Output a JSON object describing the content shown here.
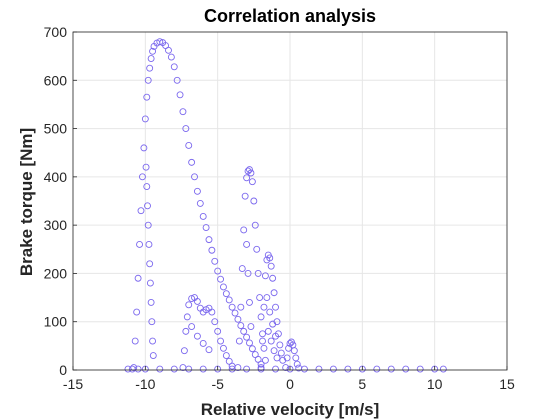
{
  "chart_data": {
    "type": "scatter",
    "title": "Correlation analysis",
    "xlabel": "Relative velocity [m/s]",
    "ylabel": "Brake torque [Nm]",
    "xlim": [
      -15,
      15
    ],
    "ylim": [
      0,
      700
    ],
    "xticks": [
      -15,
      -10,
      -5,
      0,
      5,
      10,
      15
    ],
    "yticks": [
      0,
      100,
      200,
      300,
      400,
      500,
      600,
      700
    ],
    "grid": true,
    "marker": "open-circle",
    "colors": {
      "marker": "#7b68ee",
      "grid": "#e6e6e6",
      "axis": "#262626"
    },
    "series": [
      {
        "values": [
          {
            "x": -10.8,
            "y": 5
          },
          {
            "x": -10.7,
            "y": 60
          },
          {
            "x": -10.6,
            "y": 120
          },
          {
            "x": -10.5,
            "y": 190
          },
          {
            "x": -10.4,
            "y": 260
          },
          {
            "x": -10.3,
            "y": 330
          },
          {
            "x": -10.2,
            "y": 400
          },
          {
            "x": -10.1,
            "y": 460
          },
          {
            "x": -10.0,
            "y": 520
          },
          {
            "x": -9.9,
            "y": 565
          },
          {
            "x": -9.8,
            "y": 600
          },
          {
            "x": -9.7,
            "y": 625
          },
          {
            "x": -9.6,
            "y": 645
          },
          {
            "x": -9.5,
            "y": 660
          },
          {
            "x": -9.4,
            "y": 670
          },
          {
            "x": -9.2,
            "y": 677
          },
          {
            "x": -9.0,
            "y": 680
          },
          {
            "x": -8.8,
            "y": 678
          },
          {
            "x": -8.6,
            "y": 672
          },
          {
            "x": -8.4,
            "y": 662
          },
          {
            "x": -8.2,
            "y": 648
          },
          {
            "x": -8.0,
            "y": 628
          },
          {
            "x": -7.8,
            "y": 600
          },
          {
            "x": -7.6,
            "y": 570
          },
          {
            "x": -7.4,
            "y": 535
          },
          {
            "x": -7.2,
            "y": 500
          },
          {
            "x": -7.0,
            "y": 465
          },
          {
            "x": -6.8,
            "y": 430
          },
          {
            "x": -6.6,
            "y": 400
          },
          {
            "x": -6.4,
            "y": 370
          },
          {
            "x": -6.2,
            "y": 345
          },
          {
            "x": -6.0,
            "y": 318
          },
          {
            "x": -5.8,
            "y": 295
          },
          {
            "x": -5.6,
            "y": 270
          },
          {
            "x": -5.4,
            "y": 248
          },
          {
            "x": -5.2,
            "y": 225
          },
          {
            "x": -5.0,
            "y": 205
          },
          {
            "x": -4.8,
            "y": 188
          },
          {
            "x": -4.6,
            "y": 172
          },
          {
            "x": -4.4,
            "y": 158
          },
          {
            "x": -4.2,
            "y": 145
          },
          {
            "x": -4.0,
            "y": 130
          },
          {
            "x": -3.8,
            "y": 118
          },
          {
            "x": -3.6,
            "y": 105
          },
          {
            "x": -3.4,
            "y": 92
          },
          {
            "x": -3.2,
            "y": 80
          },
          {
            "x": -3.0,
            "y": 68
          },
          {
            "x": -2.8,
            "y": 56
          },
          {
            "x": -2.6,
            "y": 44
          },
          {
            "x": -2.4,
            "y": 32
          },
          {
            "x": -2.2,
            "y": 22
          },
          {
            "x": -2.0,
            "y": 12
          },
          {
            "x": -11.2,
            "y": 2
          },
          {
            "x": -10.9,
            "y": 2
          },
          {
            "x": -10.5,
            "y": 2
          },
          {
            "x": -10.0,
            "y": 2
          },
          {
            "x": -9.95,
            "y": 420
          },
          {
            "x": -9.9,
            "y": 380
          },
          {
            "x": -9.85,
            "y": 340
          },
          {
            "x": -9.8,
            "y": 300
          },
          {
            "x": -9.75,
            "y": 260
          },
          {
            "x": -9.7,
            "y": 220
          },
          {
            "x": -9.65,
            "y": 180
          },
          {
            "x": -9.6,
            "y": 140
          },
          {
            "x": -9.55,
            "y": 100
          },
          {
            "x": -9.5,
            "y": 60
          },
          {
            "x": -9.45,
            "y": 30
          },
          {
            "x": -7.4,
            "y": 5
          },
          {
            "x": -7.3,
            "y": 40
          },
          {
            "x": -7.2,
            "y": 80
          },
          {
            "x": -7.1,
            "y": 110
          },
          {
            "x": -7.0,
            "y": 135
          },
          {
            "x": -6.8,
            "y": 148
          },
          {
            "x": -6.6,
            "y": 150
          },
          {
            "x": -6.4,
            "y": 142
          },
          {
            "x": -6.2,
            "y": 128
          },
          {
            "x": -6.0,
            "y": 120
          },
          {
            "x": -5.8,
            "y": 125
          },
          {
            "x": -5.6,
            "y": 128
          },
          {
            "x": -5.4,
            "y": 120
          },
          {
            "x": -5.2,
            "y": 100
          },
          {
            "x": -5.0,
            "y": 80
          },
          {
            "x": -4.8,
            "y": 60
          },
          {
            "x": -4.6,
            "y": 45
          },
          {
            "x": -4.4,
            "y": 30
          },
          {
            "x": -4.2,
            "y": 18
          },
          {
            "x": -4.0,
            "y": 8
          },
          {
            "x": -6.8,
            "y": 90
          },
          {
            "x": -6.4,
            "y": 70
          },
          {
            "x": -6.0,
            "y": 55
          },
          {
            "x": -5.6,
            "y": 42
          },
          {
            "x": -3.6,
            "y": 5
          },
          {
            "x": -3.5,
            "y": 60
          },
          {
            "x": -3.4,
            "y": 130
          },
          {
            "x": -3.3,
            "y": 210
          },
          {
            "x": -3.2,
            "y": 290
          },
          {
            "x": -3.1,
            "y": 360
          },
          {
            "x": -3.0,
            "y": 398
          },
          {
            "x": -2.9,
            "y": 412
          },
          {
            "x": -2.8,
            "y": 415
          },
          {
            "x": -2.7,
            "y": 408
          },
          {
            "x": -2.6,
            "y": 390
          },
          {
            "x": -2.5,
            "y": 350
          },
          {
            "x": -2.4,
            "y": 300
          },
          {
            "x": -2.3,
            "y": 250
          },
          {
            "x": -2.2,
            "y": 200
          },
          {
            "x": -2.1,
            "y": 150
          },
          {
            "x": -2.0,
            "y": 110
          },
          {
            "x": -1.9,
            "y": 75
          },
          {
            "x": -1.8,
            "y": 45
          },
          {
            "x": -1.7,
            "y": 20
          },
          {
            "x": -3.0,
            "y": 260
          },
          {
            "x": -2.9,
            "y": 200
          },
          {
            "x": -2.8,
            "y": 140
          },
          {
            "x": -2.7,
            "y": 90
          },
          {
            "x": -2.0,
            "y": 5
          },
          {
            "x": -1.9,
            "y": 60
          },
          {
            "x": -1.8,
            "y": 130
          },
          {
            "x": -1.7,
            "y": 195
          },
          {
            "x": -1.6,
            "y": 228
          },
          {
            "x": -1.5,
            "y": 238
          },
          {
            "x": -1.4,
            "y": 232
          },
          {
            "x": -1.3,
            "y": 215
          },
          {
            "x": -1.2,
            "y": 190
          },
          {
            "x": -1.1,
            "y": 160
          },
          {
            "x": -1.0,
            "y": 130
          },
          {
            "x": -0.9,
            "y": 100
          },
          {
            "x": -0.8,
            "y": 75
          },
          {
            "x": -0.7,
            "y": 52
          },
          {
            "x": -0.6,
            "y": 35
          },
          {
            "x": -0.5,
            "y": 20
          },
          {
            "x": -1.6,
            "y": 150
          },
          {
            "x": -1.4,
            "y": 120
          },
          {
            "x": -1.2,
            "y": 95
          },
          {
            "x": -1.0,
            "y": 70
          },
          {
            "x": -1.5,
            "y": 80
          },
          {
            "x": -1.3,
            "y": 60
          },
          {
            "x": -1.1,
            "y": 40
          },
          {
            "x": -0.9,
            "y": 25
          },
          {
            "x": -0.3,
            "y": 5
          },
          {
            "x": -0.2,
            "y": 25
          },
          {
            "x": -0.1,
            "y": 45
          },
          {
            "x": 0.0,
            "y": 55
          },
          {
            "x": 0.1,
            "y": 58
          },
          {
            "x": 0.2,
            "y": 52
          },
          {
            "x": 0.3,
            "y": 40
          },
          {
            "x": 0.4,
            "y": 25
          },
          {
            "x": 0.5,
            "y": 12
          },
          {
            "x": 0.6,
            "y": 4
          },
          {
            "x": -9.0,
            "y": 2
          },
          {
            "x": -8.0,
            "y": 2
          },
          {
            "x": -7.0,
            "y": 2
          },
          {
            "x": -6.0,
            "y": 2
          },
          {
            "x": -5.0,
            "y": 2
          },
          {
            "x": -4.0,
            "y": 2
          },
          {
            "x": -3.0,
            "y": 2
          },
          {
            "x": -2.0,
            "y": 2
          },
          {
            "x": -1.0,
            "y": 2
          },
          {
            "x": 0.0,
            "y": 2
          },
          {
            "x": 1.0,
            "y": 2
          },
          {
            "x": 2.0,
            "y": 2
          },
          {
            "x": 3.0,
            "y": 2
          },
          {
            "x": 4.0,
            "y": 2
          },
          {
            "x": 5.0,
            "y": 2
          },
          {
            "x": 6.0,
            "y": 2
          },
          {
            "x": 7.0,
            "y": 2
          },
          {
            "x": 8.0,
            "y": 2
          },
          {
            "x": 9.0,
            "y": 2
          },
          {
            "x": 10.0,
            "y": 2
          },
          {
            "x": 10.6,
            "y": 2
          }
        ]
      }
    ]
  }
}
